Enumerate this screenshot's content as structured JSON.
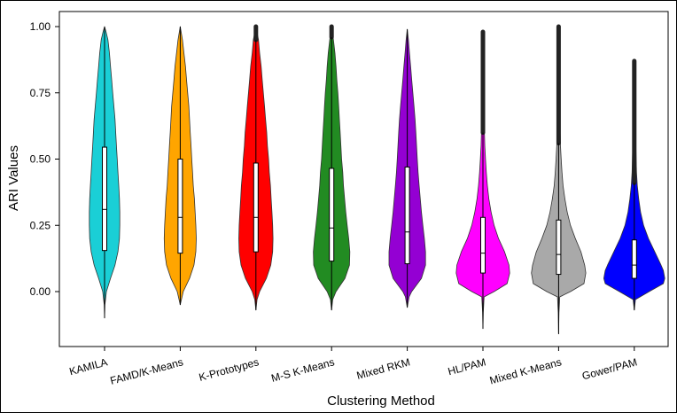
{
  "chart_data": {
    "type": "violin",
    "xlabel": "Clustering Method",
    "ylabel": "ARI Values",
    "ylim": [
      -0.2,
      1.05
    ],
    "yticks": [
      0.0,
      0.25,
      0.5,
      0.75,
      1.0
    ],
    "ytick_labels": [
      "0.00",
      "0.25",
      "0.50",
      "0.75",
      "1.00"
    ],
    "grid": false,
    "legend": "none",
    "categories": [
      "KAMILA",
      "FAMD/K-Means",
      "K-Prototypes",
      "M-S K-Means",
      "Mixed RKM",
      "HL/PAM",
      "Mixed K-Means",
      "Gower/PAM"
    ],
    "series": [
      {
        "category": "KAMILA",
        "color": "#1ACFD6",
        "min": -0.1,
        "q1": 0.155,
        "median": 0.31,
        "q3": 0.545,
        "max": 1.0,
        "whisker_low": -0.1,
        "whisker_high": 1.0,
        "outliers_to": null,
        "profile": [
          [
            -0.1,
            0.0
          ],
          [
            -0.05,
            0.01
          ],
          [
            0.0,
            0.05
          ],
          [
            0.05,
            0.16
          ],
          [
            0.1,
            0.28
          ],
          [
            0.15,
            0.36
          ],
          [
            0.2,
            0.4
          ],
          [
            0.25,
            0.41
          ],
          [
            0.3,
            0.41
          ],
          [
            0.35,
            0.4
          ],
          [
            0.4,
            0.38
          ],
          [
            0.45,
            0.36
          ],
          [
            0.5,
            0.34
          ],
          [
            0.55,
            0.32
          ],
          [
            0.6,
            0.3
          ],
          [
            0.65,
            0.28
          ],
          [
            0.7,
            0.25
          ],
          [
            0.75,
            0.22
          ],
          [
            0.8,
            0.19
          ],
          [
            0.85,
            0.16
          ],
          [
            0.9,
            0.13
          ],
          [
            0.95,
            0.09
          ],
          [
            0.98,
            0.04
          ],
          [
            1.0,
            0.0
          ]
        ]
      },
      {
        "category": "FAMD/K-Means",
        "color": "#FFA500",
        "min": -0.05,
        "q1": 0.145,
        "median": 0.28,
        "q3": 0.5,
        "max": 1.0,
        "whisker_low": -0.05,
        "whisker_high": 1.0,
        "outliers_to": null,
        "profile": [
          [
            -0.05,
            0.0
          ],
          [
            0.0,
            0.08
          ],
          [
            0.05,
            0.25
          ],
          [
            0.1,
            0.37
          ],
          [
            0.15,
            0.42
          ],
          [
            0.2,
            0.43
          ],
          [
            0.25,
            0.42
          ],
          [
            0.3,
            0.4
          ],
          [
            0.35,
            0.38
          ],
          [
            0.4,
            0.35
          ],
          [
            0.45,
            0.33
          ],
          [
            0.5,
            0.31
          ],
          [
            0.55,
            0.29
          ],
          [
            0.6,
            0.27
          ],
          [
            0.65,
            0.25
          ],
          [
            0.7,
            0.23
          ],
          [
            0.75,
            0.2
          ],
          [
            0.8,
            0.17
          ],
          [
            0.85,
            0.14
          ],
          [
            0.9,
            0.1
          ],
          [
            0.95,
            0.06
          ],
          [
            1.0,
            0.0
          ]
        ]
      },
      {
        "category": "K-Prototypes",
        "color": "#FF0000",
        "min": -0.07,
        "q1": 0.15,
        "median": 0.28,
        "q3": 0.485,
        "max": 1.0,
        "whisker_low": -0.07,
        "whisker_high": 0.95,
        "outliers_to": 1.0,
        "profile": [
          [
            -0.07,
            0.0
          ],
          [
            -0.03,
            0.03
          ],
          [
            0.0,
            0.1
          ],
          [
            0.05,
            0.28
          ],
          [
            0.1,
            0.4
          ],
          [
            0.15,
            0.45
          ],
          [
            0.2,
            0.46
          ],
          [
            0.25,
            0.45
          ],
          [
            0.3,
            0.43
          ],
          [
            0.35,
            0.41
          ],
          [
            0.4,
            0.39
          ],
          [
            0.45,
            0.36
          ],
          [
            0.5,
            0.34
          ],
          [
            0.55,
            0.31
          ],
          [
            0.6,
            0.29
          ],
          [
            0.65,
            0.26
          ],
          [
            0.7,
            0.23
          ],
          [
            0.75,
            0.2
          ],
          [
            0.8,
            0.17
          ],
          [
            0.85,
            0.14
          ],
          [
            0.9,
            0.1
          ],
          [
            0.95,
            0.07
          ],
          [
            1.0,
            0.0
          ]
        ]
      },
      {
        "category": "M-S K-Means",
        "color": "#228B22",
        "min": -0.07,
        "q1": 0.115,
        "median": 0.24,
        "q3": 0.465,
        "max": 1.0,
        "whisker_low": -0.07,
        "whisker_high": 0.96,
        "outliers_to": 1.0,
        "profile": [
          [
            -0.07,
            0.0
          ],
          [
            -0.03,
            0.03
          ],
          [
            0.0,
            0.12
          ],
          [
            0.05,
            0.36
          ],
          [
            0.1,
            0.48
          ],
          [
            0.15,
            0.49
          ],
          [
            0.2,
            0.46
          ],
          [
            0.25,
            0.42
          ],
          [
            0.3,
            0.38
          ],
          [
            0.35,
            0.35
          ],
          [
            0.4,
            0.32
          ],
          [
            0.45,
            0.3
          ],
          [
            0.5,
            0.27
          ],
          [
            0.55,
            0.25
          ],
          [
            0.6,
            0.23
          ],
          [
            0.65,
            0.21
          ],
          [
            0.7,
            0.19
          ],
          [
            0.75,
            0.17
          ],
          [
            0.8,
            0.14
          ],
          [
            0.85,
            0.12
          ],
          [
            0.9,
            0.09
          ],
          [
            0.95,
            0.05
          ],
          [
            1.0,
            0.0
          ]
        ]
      },
      {
        "category": "Mixed RKM",
        "color": "#9400D3",
        "min": -0.06,
        "q1": 0.105,
        "median": 0.225,
        "q3": 0.47,
        "max": 0.99,
        "whisker_low": -0.06,
        "whisker_high": 0.99,
        "outliers_to": null,
        "profile": [
          [
            -0.06,
            0.0
          ],
          [
            -0.02,
            0.05
          ],
          [
            0.0,
            0.12
          ],
          [
            0.05,
            0.38
          ],
          [
            0.1,
            0.49
          ],
          [
            0.15,
            0.49
          ],
          [
            0.2,
            0.46
          ],
          [
            0.25,
            0.42
          ],
          [
            0.3,
            0.38
          ],
          [
            0.35,
            0.35
          ],
          [
            0.4,
            0.32
          ],
          [
            0.45,
            0.29
          ],
          [
            0.5,
            0.27
          ],
          [
            0.55,
            0.25
          ],
          [
            0.6,
            0.23
          ],
          [
            0.65,
            0.21
          ],
          [
            0.7,
            0.18
          ],
          [
            0.75,
            0.15
          ],
          [
            0.8,
            0.12
          ],
          [
            0.85,
            0.09
          ],
          [
            0.9,
            0.06
          ],
          [
            0.95,
            0.03
          ],
          [
            0.99,
            0.0
          ]
        ]
      },
      {
        "category": "HL/PAM",
        "color": "#FF00FF",
        "min": -0.14,
        "q1": 0.07,
        "median": 0.145,
        "q3": 0.28,
        "max": 0.98,
        "whisker_low": -0.14,
        "whisker_high": 0.6,
        "outliers_to": 0.98,
        "profile": [
          [
            -0.14,
            0.0
          ],
          [
            -0.08,
            0.01
          ],
          [
            -0.02,
            0.03
          ],
          [
            0.0,
            0.3
          ],
          [
            0.03,
            0.65
          ],
          [
            0.07,
            0.72
          ],
          [
            0.1,
            0.7
          ],
          [
            0.15,
            0.58
          ],
          [
            0.2,
            0.42
          ],
          [
            0.25,
            0.3
          ],
          [
            0.3,
            0.22
          ],
          [
            0.35,
            0.16
          ],
          [
            0.4,
            0.12
          ],
          [
            0.45,
            0.09
          ],
          [
            0.5,
            0.07
          ],
          [
            0.55,
            0.05
          ],
          [
            0.6,
            0.04
          ],
          [
            0.7,
            0.03
          ],
          [
            0.8,
            0.02
          ],
          [
            0.9,
            0.01
          ],
          [
            0.98,
            0.0
          ]
        ]
      },
      {
        "category": "Mixed K-Means",
        "color": "#A9A9A9",
        "min": -0.16,
        "q1": 0.065,
        "median": 0.14,
        "q3": 0.27,
        "max": 1.0,
        "whisker_low": -0.16,
        "whisker_high": 0.56,
        "outliers_to": 1.0,
        "profile": [
          [
            -0.16,
            0.0
          ],
          [
            -0.08,
            0.01
          ],
          [
            -0.02,
            0.03
          ],
          [
            0.0,
            0.32
          ],
          [
            0.03,
            0.68
          ],
          [
            0.07,
            0.73
          ],
          [
            0.1,
            0.7
          ],
          [
            0.15,
            0.6
          ],
          [
            0.2,
            0.45
          ],
          [
            0.25,
            0.32
          ],
          [
            0.3,
            0.23
          ],
          [
            0.35,
            0.17
          ],
          [
            0.4,
            0.12
          ],
          [
            0.45,
            0.09
          ],
          [
            0.5,
            0.07
          ],
          [
            0.55,
            0.05
          ],
          [
            0.6,
            0.04
          ],
          [
            0.7,
            0.03
          ],
          [
            0.8,
            0.02
          ],
          [
            0.9,
            0.01
          ],
          [
            1.0,
            0.0
          ]
        ]
      },
      {
        "category": "Gower/PAM",
        "color": "#0000FF",
        "min": -0.07,
        "q1": 0.05,
        "median": 0.1,
        "q3": 0.195,
        "max": 0.87,
        "whisker_low": -0.07,
        "whisker_high": 0.41,
        "outliers_to": 0.87,
        "profile": [
          [
            -0.07,
            0.0
          ],
          [
            -0.03,
            0.03
          ],
          [
            0.0,
            0.4
          ],
          [
            0.03,
            0.78
          ],
          [
            0.05,
            0.82
          ],
          [
            0.08,
            0.78
          ],
          [
            0.1,
            0.72
          ],
          [
            0.15,
            0.55
          ],
          [
            0.2,
            0.38
          ],
          [
            0.25,
            0.25
          ],
          [
            0.3,
            0.17
          ],
          [
            0.35,
            0.12
          ],
          [
            0.4,
            0.08
          ],
          [
            0.45,
            0.06
          ],
          [
            0.5,
            0.05
          ],
          [
            0.6,
            0.03
          ],
          [
            0.7,
            0.02
          ],
          [
            0.8,
            0.01
          ],
          [
            0.87,
            0.0
          ]
        ]
      }
    ]
  }
}
